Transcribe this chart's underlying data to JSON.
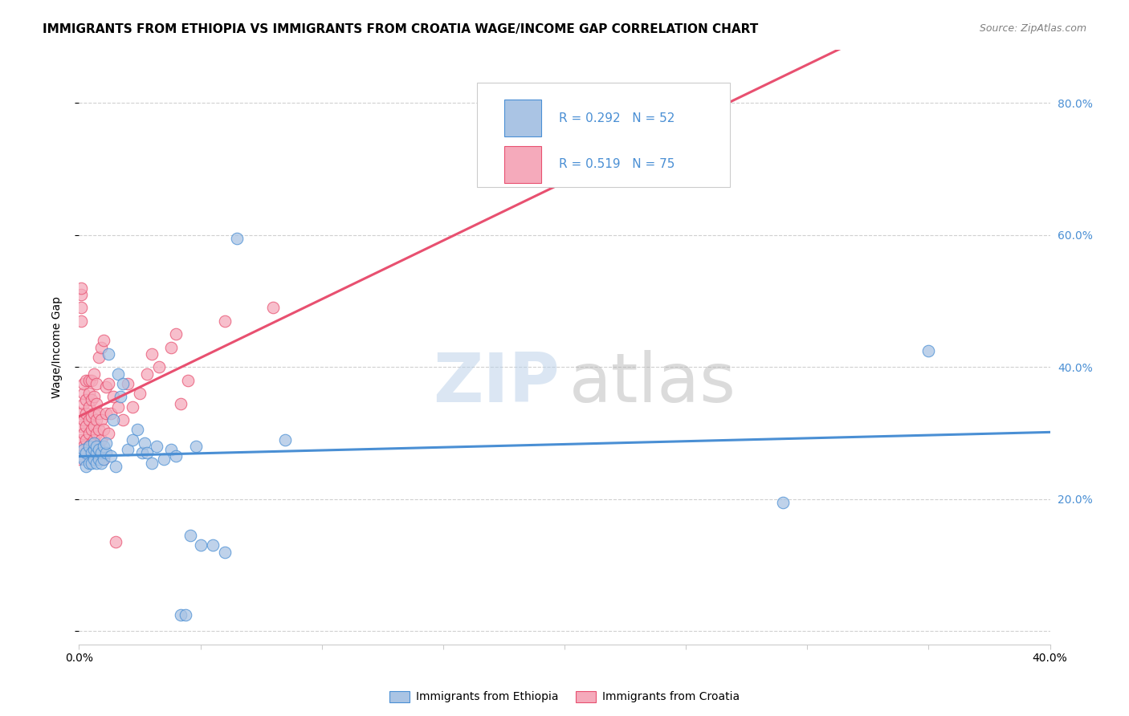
{
  "title": "IMMIGRANTS FROM ETHIOPIA VS IMMIGRANTS FROM CROATIA WAGE/INCOME GAP CORRELATION CHART",
  "source": "Source: ZipAtlas.com",
  "ylabel": "Wage/Income Gap",
  "xlim": [
    0.0,
    0.4
  ],
  "ylim": [
    -0.02,
    0.88
  ],
  "ytick_positions": [
    0.0,
    0.2,
    0.4,
    0.6,
    0.8
  ],
  "ytick_labels": [
    "",
    "20.0%",
    "40.0%",
    "60.0%",
    "80.0%"
  ],
  "xtick_positions": [
    0.0,
    0.05,
    0.1,
    0.15,
    0.2,
    0.25,
    0.3,
    0.35,
    0.4
  ],
  "xtick_labels": [
    "0.0%",
    "",
    "",
    "",
    "",
    "",
    "",
    "",
    "40.0%"
  ],
  "legend_R1": "0.292",
  "legend_N1": "52",
  "legend_R2": "0.519",
  "legend_N2": "75",
  "color_ethiopia": "#aac4e4",
  "color_croatia": "#f5aabb",
  "color_line_ethiopia": "#4a8fd4",
  "color_line_croatia": "#e85070",
  "background_color": "#ffffff",
  "grid_color": "#d0d0d0",
  "title_fontsize": 11,
  "axis_label_fontsize": 10,
  "tick_fontsize": 10,
  "watermark_zip": "ZIP",
  "watermark_atlas": "atlas",
  "ethiopia_scatter_x": [
    0.001,
    0.002,
    0.002,
    0.003,
    0.003,
    0.004,
    0.004,
    0.005,
    0.005,
    0.006,
    0.006,
    0.006,
    0.007,
    0.007,
    0.007,
    0.008,
    0.008,
    0.009,
    0.009,
    0.01,
    0.01,
    0.011,
    0.011,
    0.012,
    0.013,
    0.014,
    0.015,
    0.016,
    0.017,
    0.018,
    0.02,
    0.022,
    0.024,
    0.026,
    0.027,
    0.028,
    0.03,
    0.032,
    0.035,
    0.038,
    0.04,
    0.042,
    0.044,
    0.046,
    0.048,
    0.05,
    0.055,
    0.06,
    0.065,
    0.085,
    0.29,
    0.35
  ],
  "ethiopia_scatter_y": [
    0.265,
    0.26,
    0.275,
    0.25,
    0.27,
    0.255,
    0.28,
    0.255,
    0.27,
    0.26,
    0.275,
    0.285,
    0.255,
    0.27,
    0.28,
    0.26,
    0.275,
    0.255,
    0.27,
    0.26,
    0.28,
    0.27,
    0.285,
    0.42,
    0.265,
    0.32,
    0.25,
    0.39,
    0.355,
    0.375,
    0.275,
    0.29,
    0.305,
    0.27,
    0.285,
    0.27,
    0.255,
    0.28,
    0.26,
    0.275,
    0.265,
    0.025,
    0.025,
    0.145,
    0.28,
    0.13,
    0.13,
    0.12,
    0.595,
    0.29,
    0.195,
    0.425
  ],
  "croatia_scatter_x": [
    0.0,
    0.001,
    0.001,
    0.001,
    0.001,
    0.001,
    0.001,
    0.001,
    0.002,
    0.002,
    0.002,
    0.002,
    0.002,
    0.002,
    0.003,
    0.003,
    0.003,
    0.003,
    0.003,
    0.003,
    0.004,
    0.004,
    0.004,
    0.004,
    0.004,
    0.004,
    0.004,
    0.005,
    0.005,
    0.005,
    0.005,
    0.005,
    0.005,
    0.006,
    0.006,
    0.006,
    0.006,
    0.006,
    0.006,
    0.007,
    0.007,
    0.007,
    0.007,
    0.007,
    0.008,
    0.008,
    0.008,
    0.008,
    0.009,
    0.009,
    0.009,
    0.01,
    0.01,
    0.01,
    0.011,
    0.011,
    0.012,
    0.012,
    0.013,
    0.014,
    0.015,
    0.016,
    0.018,
    0.02,
    0.022,
    0.025,
    0.028,
    0.03,
    0.033,
    0.038,
    0.04,
    0.042,
    0.045,
    0.06,
    0.08
  ],
  "croatia_scatter_y": [
    0.26,
    0.29,
    0.31,
    0.33,
    0.47,
    0.49,
    0.51,
    0.52,
    0.28,
    0.3,
    0.32,
    0.345,
    0.36,
    0.375,
    0.27,
    0.29,
    0.31,
    0.33,
    0.35,
    0.38,
    0.26,
    0.28,
    0.3,
    0.32,
    0.34,
    0.36,
    0.38,
    0.265,
    0.285,
    0.305,
    0.325,
    0.35,
    0.38,
    0.27,
    0.29,
    0.31,
    0.33,
    0.355,
    0.39,
    0.275,
    0.3,
    0.32,
    0.345,
    0.375,
    0.28,
    0.305,
    0.33,
    0.415,
    0.29,
    0.32,
    0.43,
    0.26,
    0.305,
    0.44,
    0.33,
    0.37,
    0.3,
    0.375,
    0.33,
    0.355,
    0.135,
    0.34,
    0.32,
    0.375,
    0.34,
    0.36,
    0.39,
    0.42,
    0.4,
    0.43,
    0.45,
    0.345,
    0.38,
    0.47,
    0.49
  ]
}
